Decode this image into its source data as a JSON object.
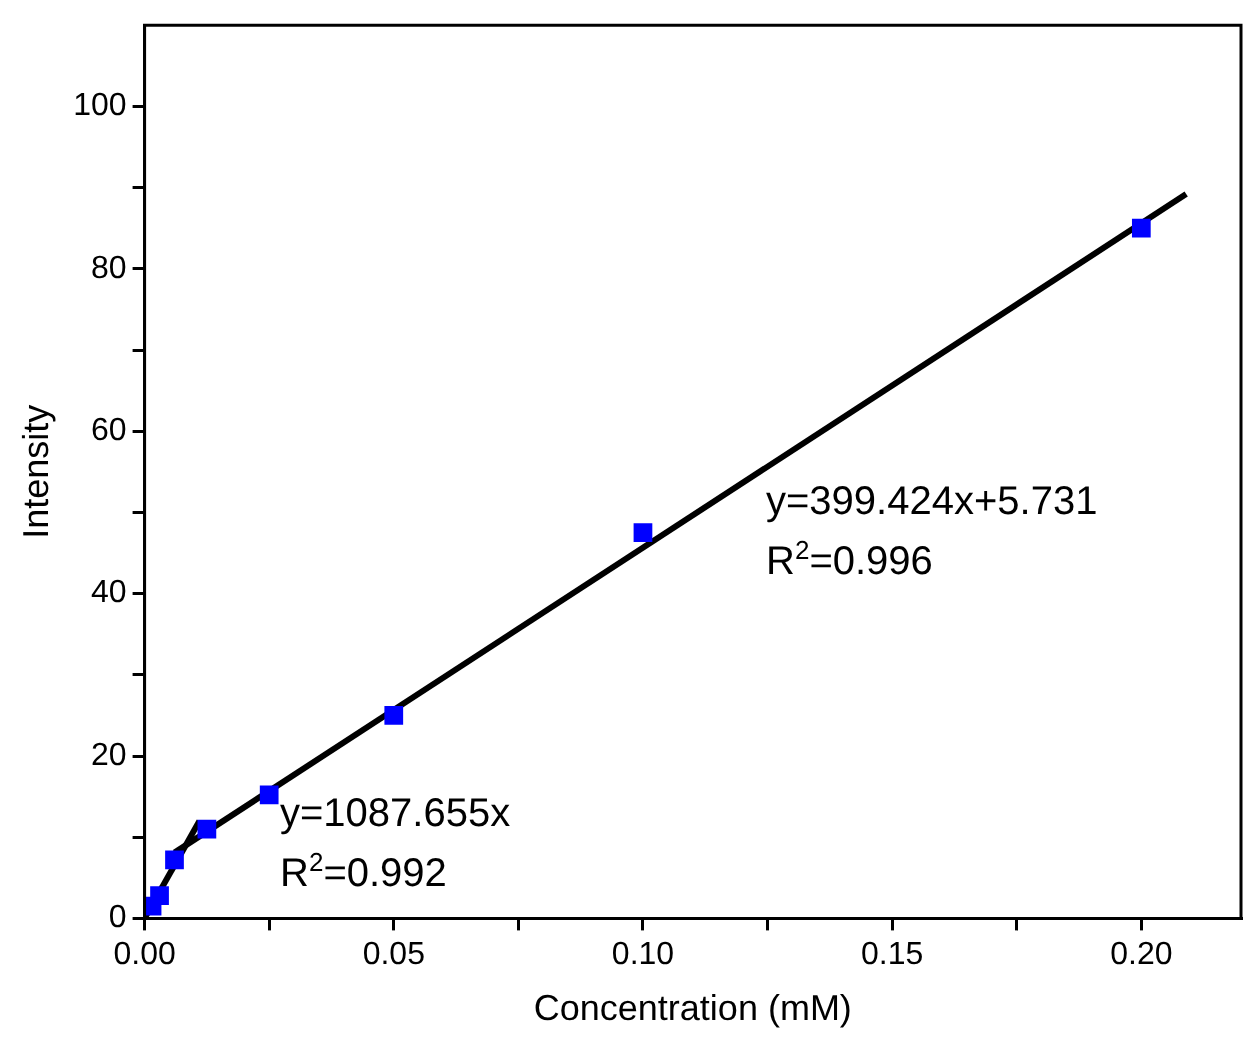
{
  "chart_data": {
    "type": "scatter",
    "xlabel": "Concentration (mM)",
    "ylabel": "Intensity",
    "xlim": [
      0,
      0.22
    ],
    "ylim": [
      0,
      110
    ],
    "xticks": [
      {
        "value": 0,
        "label": "0.00"
      },
      {
        "value": 0.025,
        "label": null
      },
      {
        "value": 0.05,
        "label": "0.05"
      },
      {
        "value": 0.075,
        "label": null
      },
      {
        "value": 0.1,
        "label": "0.10"
      },
      {
        "value": 0.125,
        "label": null
      },
      {
        "value": 0.15,
        "label": "0.15"
      },
      {
        "value": 0.175,
        "label": null
      },
      {
        "value": 0.2,
        "label": "0.20"
      }
    ],
    "yticks": [
      0,
      {
        "value": 10,
        "label": null
      },
      20,
      {
        "value": 30,
        "label": null
      },
      40,
      {
        "value": 50,
        "label": null
      },
      60,
      {
        "value": 70,
        "label": null
      },
      80,
      {
        "value": 90,
        "label": null
      },
      100
    ],
    "grid": false,
    "legend": false,
    "series": [
      {
        "color": "#0000ff",
        "marker": "square",
        "x": [
          0.0015,
          0.003,
          0.006,
          0.0125,
          0.025,
          0.05,
          0.1,
          0.2
        ],
        "values": [
          1.5,
          2.8,
          7.2,
          11,
          15.2,
          25,
          47.5,
          85
        ]
      },
      {
        "type": "line",
        "color": "#000000",
        "marker": "none",
        "line_style": "solid",
        "x": [
          0,
          0.011
        ],
        "values": [
          0,
          12
        ]
      },
      {
        "type": "line",
        "color": "#000000",
        "marker": "none",
        "line_style": "solid",
        "x": [
          0.006,
          0.209
        ],
        "values": [
          8.1,
          89.2
        ]
      }
    ],
    "annotations": [
      "y=399.424x+5.731",
      "R$^{2}$=0.996",
      "y=1087.655x",
      "R$^{2}$=0.992"
    ]
  }
}
